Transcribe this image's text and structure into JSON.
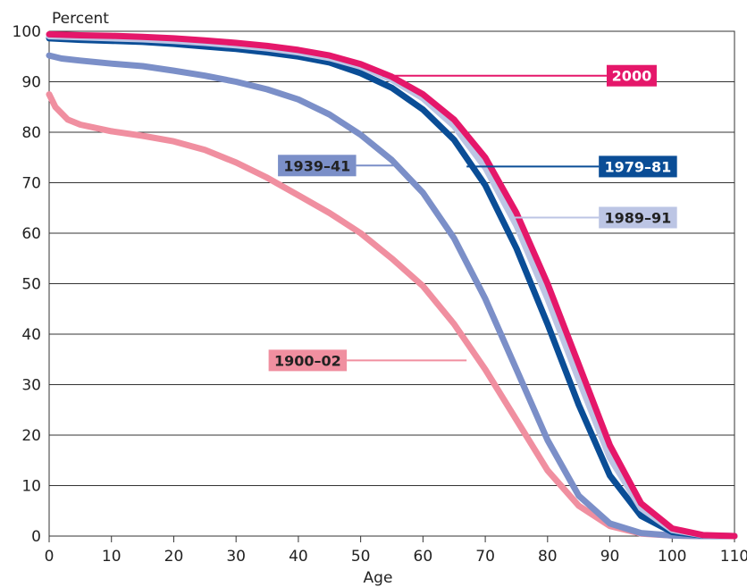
{
  "chart_data": {
    "type": "line",
    "title": "",
    "xlabel": "Age",
    "ylabel": "Percent",
    "xlim": [
      0,
      110
    ],
    "ylim": [
      0,
      100
    ],
    "xticks": [
      "0",
      "10",
      "20",
      "30",
      "40",
      "50",
      "60",
      "70",
      "80",
      "90",
      "100",
      "110"
    ],
    "yticks": [
      "0",
      "10",
      "20",
      "30",
      "40",
      "50",
      "60",
      "70",
      "80",
      "90",
      "100"
    ],
    "grid": "horizontal",
    "series": [
      {
        "name": "1900–02",
        "color": "#f08fa0",
        "label_fill": "#f08fa0",
        "label_text_color": "#222222",
        "points": [
          [
            0,
            87.5
          ],
          [
            1,
            85
          ],
          [
            3,
            82.5
          ],
          [
            5,
            81.5
          ],
          [
            10,
            80.2
          ],
          [
            15,
            79.3
          ],
          [
            20,
            78.2
          ],
          [
            25,
            76.5
          ],
          [
            30,
            74
          ],
          [
            35,
            71
          ],
          [
            40,
            67.5
          ],
          [
            45,
            64
          ],
          [
            50,
            60
          ],
          [
            55,
            55
          ],
          [
            60,
            49.5
          ],
          [
            65,
            42
          ],
          [
            70,
            33
          ],
          [
            75,
            23
          ],
          [
            80,
            13
          ],
          [
            85,
            6
          ],
          [
            90,
            2
          ],
          [
            95,
            0.5
          ],
          [
            100,
            0.1
          ],
          [
            105,
            0
          ],
          [
            110,
            0
          ]
        ]
      },
      {
        "name": "1939–41",
        "color": "#7b8fc8",
        "label_fill": "#7b8fc8",
        "label_text_color": "#222222",
        "points": [
          [
            0,
            95.2
          ],
          [
            2,
            94.6
          ],
          [
            5,
            94.2
          ],
          [
            10,
            93.6
          ],
          [
            15,
            93.1
          ],
          [
            20,
            92.2
          ],
          [
            25,
            91.2
          ],
          [
            30,
            90
          ],
          [
            35,
            88.5
          ],
          [
            40,
            86.5
          ],
          [
            45,
            83.5
          ],
          [
            50,
            79.5
          ],
          [
            55,
            74.5
          ],
          [
            60,
            68
          ],
          [
            65,
            59
          ],
          [
            70,
            47
          ],
          [
            75,
            33
          ],
          [
            80,
            19
          ],
          [
            85,
            8
          ],
          [
            90,
            2.5
          ],
          [
            95,
            0.6
          ],
          [
            100,
            0.1
          ],
          [
            105,
            0
          ],
          [
            110,
            0
          ]
        ]
      },
      {
        "name": "1979–81",
        "color": "#0a4d96",
        "label_fill": "#0a4d96",
        "label_text_color": "#ffffff",
        "points": [
          [
            0,
            98.6
          ],
          [
            5,
            98.3
          ],
          [
            10,
            98.1
          ],
          [
            15,
            97.9
          ],
          [
            20,
            97.5
          ],
          [
            25,
            97
          ],
          [
            30,
            96.5
          ],
          [
            35,
            95.8
          ],
          [
            40,
            95
          ],
          [
            45,
            93.8
          ],
          [
            50,
            91.7
          ],
          [
            55,
            88.8
          ],
          [
            60,
            84.5
          ],
          [
            65,
            78.5
          ],
          [
            70,
            69.5
          ],
          [
            75,
            57
          ],
          [
            80,
            42
          ],
          [
            85,
            26
          ],
          [
            90,
            12
          ],
          [
            95,
            4
          ],
          [
            100,
            0.8
          ],
          [
            105,
            0.1
          ],
          [
            110,
            0
          ]
        ]
      },
      {
        "name": "1989–91",
        "color": "#bcc5e4",
        "label_fill": "#bcc5e4",
        "label_text_color": "#222222",
        "points": [
          [
            0,
            99
          ],
          [
            5,
            98.8
          ],
          [
            10,
            98.6
          ],
          [
            15,
            98.4
          ],
          [
            20,
            98.1
          ],
          [
            25,
            97.7
          ],
          [
            30,
            97.2
          ],
          [
            35,
            96.6
          ],
          [
            40,
            95.8
          ],
          [
            45,
            94.7
          ],
          [
            50,
            93
          ],
          [
            55,
            90.4
          ],
          [
            60,
            86.7
          ],
          [
            65,
            81.2
          ],
          [
            70,
            73
          ],
          [
            75,
            61.5
          ],
          [
            80,
            47
          ],
          [
            85,
            31
          ],
          [
            90,
            15.5
          ],
          [
            95,
            5.5
          ],
          [
            100,
            1.2
          ],
          [
            105,
            0.15
          ],
          [
            110,
            0
          ]
        ]
      },
      {
        "name": "2000",
        "color": "#e5176a",
        "label_fill": "#e5176a",
        "label_text_color": "#ffffff",
        "points": [
          [
            0,
            99.4
          ],
          [
            5,
            99.2
          ],
          [
            10,
            99.1
          ],
          [
            15,
            98.9
          ],
          [
            20,
            98.6
          ],
          [
            25,
            98.2
          ],
          [
            30,
            97.7
          ],
          [
            35,
            97.1
          ],
          [
            40,
            96.3
          ],
          [
            45,
            95.2
          ],
          [
            50,
            93.5
          ],
          [
            55,
            91
          ],
          [
            60,
            87.5
          ],
          [
            65,
            82.5
          ],
          [
            70,
            75
          ],
          [
            75,
            64
          ],
          [
            80,
            50
          ],
          [
            85,
            34
          ],
          [
            90,
            18
          ],
          [
            95,
            6.5
          ],
          [
            100,
            1.5
          ],
          [
            105,
            0.2
          ],
          [
            110,
            0
          ]
        ]
      }
    ],
    "annotations": [
      {
        "series": "2000",
        "text": "2000",
        "box_x": 93.5,
        "box_y": 91.2,
        "leader_x": 53.5,
        "leader_y": 91.2
      },
      {
        "series": "1979–81",
        "text": "1979–81",
        "box_x": 94.5,
        "box_y": 73.2,
        "leader_x": 67,
        "leader_y": 73.2
      },
      {
        "series": "1989–91",
        "text": "1989–91",
        "box_x": 94.5,
        "box_y": 63.1,
        "leader_x": 74.3,
        "leader_y": 63.1
      },
      {
        "series": "1939–41",
        "text": "1939–41",
        "box_x": 43,
        "box_y": 73.4,
        "leader_x": 56.3,
        "leader_y": 73.4
      },
      {
        "series": "1900–02",
        "text": "1900–02",
        "box_x": 41.5,
        "box_y": 34.8,
        "leader_x": 67,
        "leader_y": 34.8
      }
    ]
  }
}
